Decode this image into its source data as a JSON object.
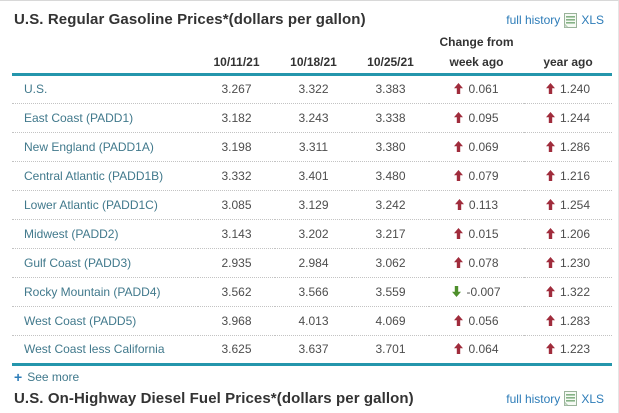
{
  "colors": {
    "accent_teal": "#2496ac",
    "link_blue": "#2d7cb8",
    "label_teal": "#41798c",
    "arrow_up_red": "#a02c3c",
    "arrow_down_green": "#4e8f2c"
  },
  "gas": {
    "title": "U.S. Regular Gasoline Prices*(dollars per gallon)",
    "full_history_label": "full history",
    "xls_label": "XLS",
    "change_from_label": "Change from",
    "columns": [
      "10/11/21",
      "10/18/21",
      "10/25/21",
      "week ago",
      "year ago"
    ],
    "rows": [
      {
        "label": "U.S.",
        "values": [
          "3.267",
          "3.322",
          "3.383"
        ],
        "week_change": "0.061",
        "week_dir": "up",
        "year_change": "1.240",
        "year_dir": "up"
      },
      {
        "label": "East Coast (PADD1)",
        "values": [
          "3.182",
          "3.243",
          "3.338"
        ],
        "week_change": "0.095",
        "week_dir": "up",
        "year_change": "1.244",
        "year_dir": "up"
      },
      {
        "label": "New England (PADD1A)",
        "values": [
          "3.198",
          "3.311",
          "3.380"
        ],
        "week_change": "0.069",
        "week_dir": "up",
        "year_change": "1.286",
        "year_dir": "up"
      },
      {
        "label": "Central Atlantic (PADD1B)",
        "values": [
          "3.332",
          "3.401",
          "3.480"
        ],
        "week_change": "0.079",
        "week_dir": "up",
        "year_change": "1.216",
        "year_dir": "up"
      },
      {
        "label": "Lower Atlantic (PADD1C)",
        "values": [
          "3.085",
          "3.129",
          "3.242"
        ],
        "week_change": "0.113",
        "week_dir": "up",
        "year_change": "1.254",
        "year_dir": "up"
      },
      {
        "label": "Midwest (PADD2)",
        "values": [
          "3.143",
          "3.202",
          "3.217"
        ],
        "week_change": "0.015",
        "week_dir": "up",
        "year_change": "1.206",
        "year_dir": "up"
      },
      {
        "label": "Gulf Coast (PADD3)",
        "values": [
          "2.935",
          "2.984",
          "3.062"
        ],
        "week_change": "0.078",
        "week_dir": "up",
        "year_change": "1.230",
        "year_dir": "up"
      },
      {
        "label": "Rocky Mountain (PADD4)",
        "values": [
          "3.562",
          "3.566",
          "3.559"
        ],
        "week_change": "-0.007",
        "week_dir": "down",
        "year_change": "1.322",
        "year_dir": "up"
      },
      {
        "label": "West Coast (PADD5)",
        "values": [
          "3.968",
          "4.013",
          "4.069"
        ],
        "week_change": "0.056",
        "week_dir": "up",
        "year_change": "1.283",
        "year_dir": "up"
      },
      {
        "label": "West Coast less California",
        "values": [
          "3.625",
          "3.637",
          "3.701"
        ],
        "week_change": "0.064",
        "week_dir": "up",
        "year_change": "1.223",
        "year_dir": "up"
      }
    ],
    "see_more": {
      "icon": "+",
      "label": "See more"
    }
  },
  "diesel": {
    "title": "U.S. On-Highway Diesel Fuel Prices*(dollars per gallon)",
    "full_history_label": "full history",
    "xls_label": "XLS"
  }
}
